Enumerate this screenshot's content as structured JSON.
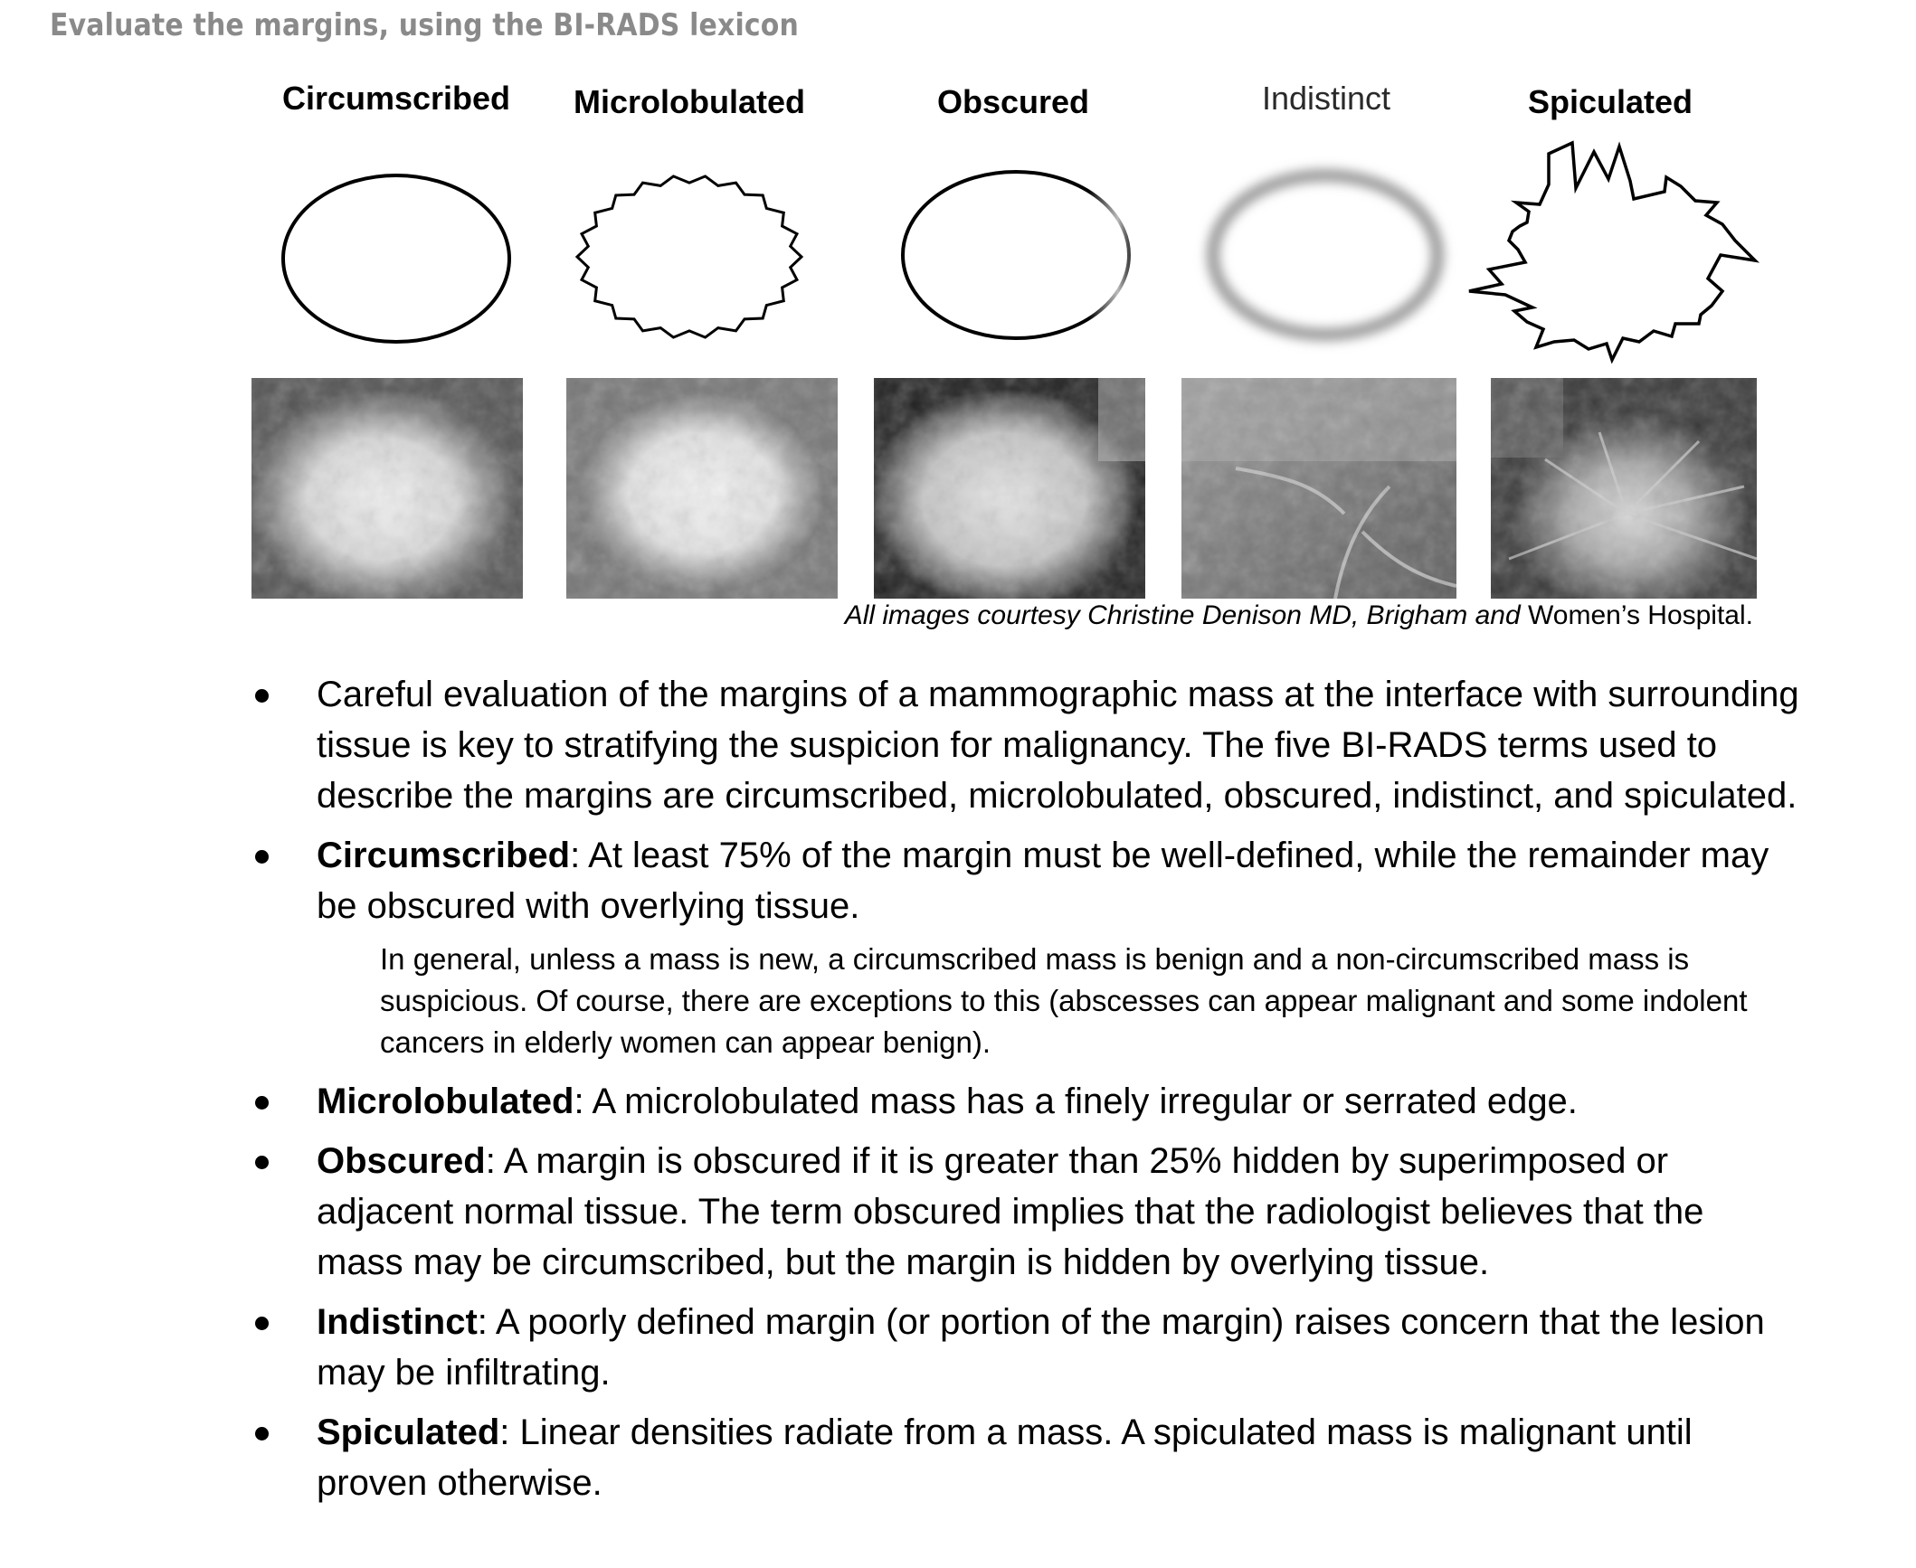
{
  "header": "Evaluate the margins, using the BI-RADS lexicon",
  "terms": [
    "Circumscribed",
    "Microlobulated",
    "Obscured",
    "Indistinct",
    "Spiculated"
  ],
  "credit_prefix": "All images courtesy Christine Denison MD, Brigham and ",
  "credit_suffix": "Women’s Hospital.",
  "bullets": [
    {
      "term": "",
      "sep": "",
      "text": "Careful evaluation of the margins of a mammographic mass at the interface with surrounding tissue is key to stratifying the suspicion for malignancy. The five BI-RADS terms used to describe the margins are circumscribed, microlobulated, obscured, indistinct, and spiculated."
    },
    {
      "term": "Circumscribed",
      "sep": ":",
      "text": " At least 75% of the margin must be well-defined, while the remainder may be obscured with overlying tissue."
    },
    {
      "term": "Microlobulated",
      "sep": ":",
      "text": " A microlobulated mass has a finely irregular or serrated edge."
    },
    {
      "term": "Obscured",
      "sep": ":",
      "text": " A margin is obscured if it is greater than 25% hidden by superimposed or adjacent normal tissue. The term obscured implies that the radiologist believes that the mass may be circumscribed, but the margin is hidden by overlying tissue."
    },
    {
      "term": "Indistinct",
      "sep": ":",
      "text": " A poorly defined margin (or portion of the margin) raises concern that the lesion may be infiltrating."
    },
    {
      "term": "Spiculated",
      "sep": ":",
      "text": " Linear densities radiate from a mass. A spiculated mass is malignant until proven otherwise."
    }
  ],
  "note": "In general, unless a mass is new, a circumscribed mass is benign and a non-circumscribed mass is suspicious. Of course, there are exceptions to this (abscesses can appear malignant and some indolent cancers in elderly women can appear benign)."
}
